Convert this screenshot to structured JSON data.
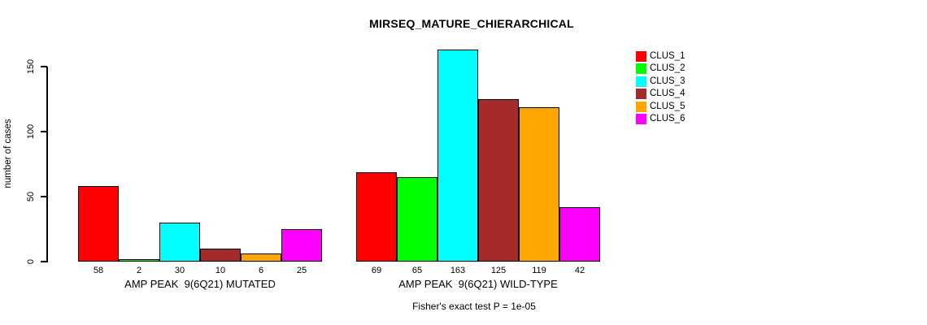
{
  "chart_data": {
    "type": "bar",
    "title": "MIRSEQ_MATURE_CHIERARCHICAL",
    "ylabel": "number of cases",
    "xlabel": "",
    "yticks": [
      0,
      50,
      100,
      150
    ],
    "ylim": [
      0,
      163
    ],
    "grid": false,
    "legend_position": "top-right",
    "bar_colors": [
      "#ff0000",
      "#00ff00",
      "#00ffff",
      "#a52a2a",
      "#ffa500",
      "#ff00ff"
    ],
    "legend": [
      {
        "label": "CLUS_1",
        "color": "#ff0000"
      },
      {
        "label": "CLUS_2",
        "color": "#00ff00"
      },
      {
        "label": "CLUS_3",
        "color": "#00ffff"
      },
      {
        "label": "CLUS_4",
        "color": "#a52a2a"
      },
      {
        "label": "CLUS_5",
        "color": "#ffa500"
      },
      {
        "label": "CLUS_6",
        "color": "#ff00ff"
      }
    ],
    "groups": [
      {
        "label": "AMP PEAK  9(6Q21) MUTATED",
        "values": [
          58,
          2,
          30,
          10,
          6,
          25
        ]
      },
      {
        "label": "AMP PEAK  9(6Q21) WILD-TYPE",
        "values": [
          69,
          65,
          163,
          125,
          119,
          42
        ]
      }
    ],
    "caption": "Fisher's exact test P = 1e-05"
  }
}
